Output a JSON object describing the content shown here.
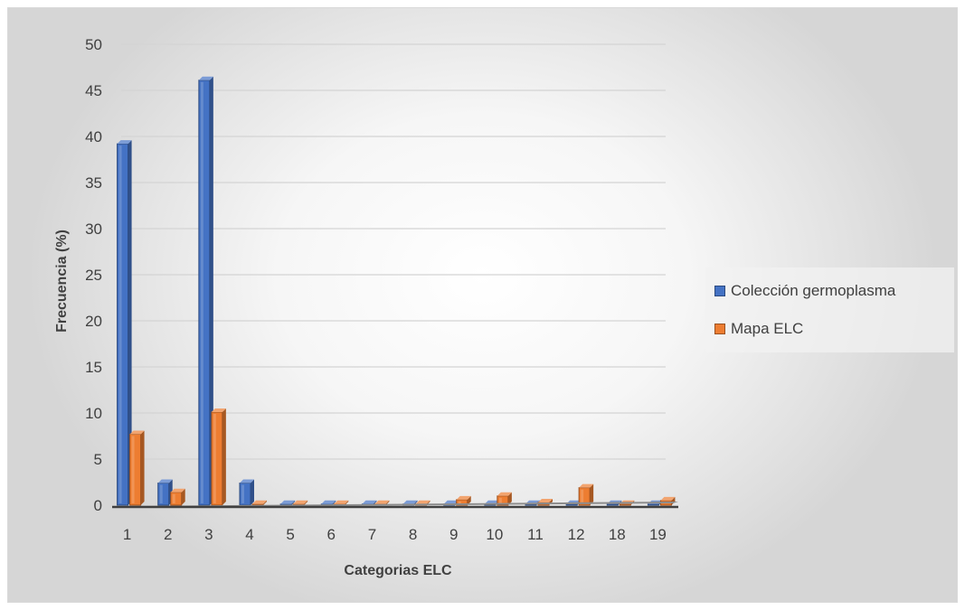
{
  "chart_data": {
    "type": "bar",
    "title": "",
    "xlabel": "Categorias ELC",
    "ylabel": "Frecuencia (%)",
    "ylim": [
      0,
      50
    ],
    "y_ticks": [
      "0",
      "5",
      "10",
      "15",
      "20",
      "25",
      "30",
      "35",
      "40",
      "45",
      "50"
    ],
    "grid": true,
    "legend_position": "right",
    "categories": [
      "1",
      "2",
      "3",
      "4",
      "5",
      "6",
      "7",
      "8",
      "9",
      "10",
      "11",
      "12",
      "18",
      "19"
    ],
    "series": [
      {
        "name": "Colección germoplasma",
        "color": "#4472c4",
        "values": [
          39.2,
          2.4,
          46.1,
          2.4,
          0,
          0,
          0,
          0,
          0,
          0,
          0,
          0,
          0,
          0
        ]
      },
      {
        "name": "Mapa ELC",
        "color": "#ed7d31",
        "values": [
          7.7,
          1.4,
          10.1,
          0,
          0,
          0,
          0,
          0,
          0.6,
          1.0,
          0.3,
          1.9,
          0,
          0.5
        ]
      }
    ]
  }
}
